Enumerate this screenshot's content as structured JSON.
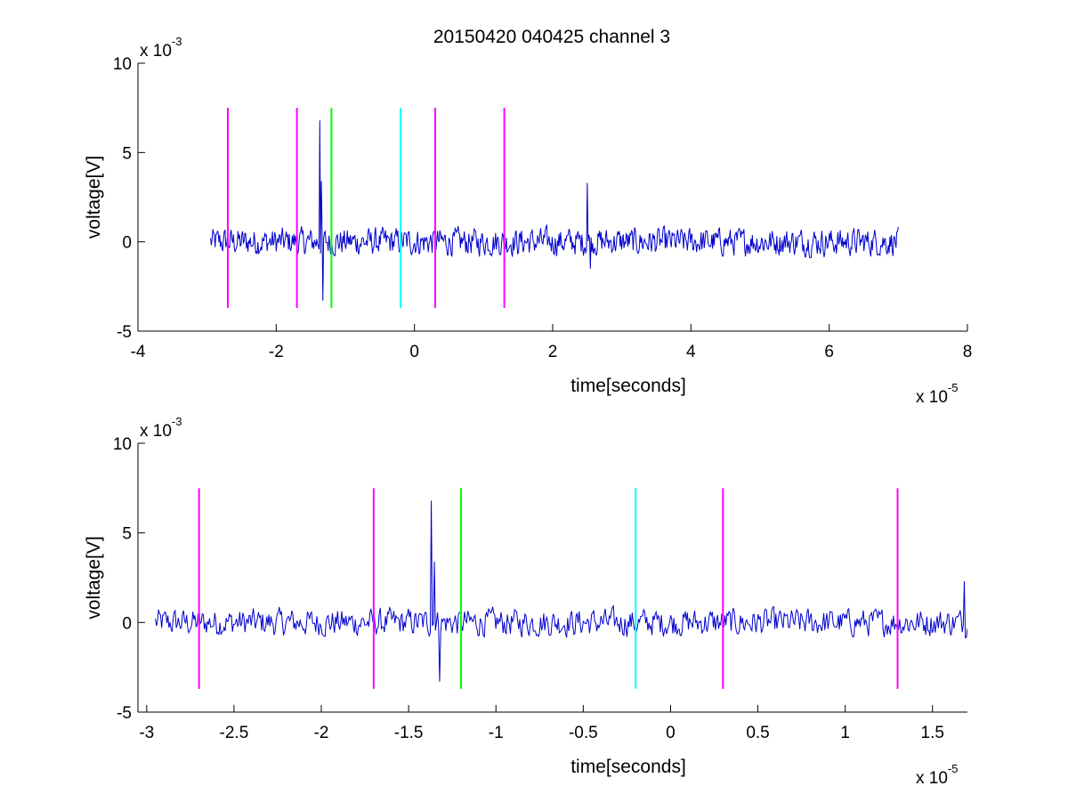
{
  "figure": {
    "title": "20150420 040425 channel 3"
  },
  "colors": {
    "signal": "#0000cc",
    "marker_magenta": "#ff00ff",
    "marker_green": "#00ff00",
    "marker_cyan": "#00ffff",
    "axis": "#000000",
    "background": "#ffffff"
  },
  "chart_data": [
    {
      "type": "line",
      "title": "20150420 040425 channel 3",
      "xlabel": "time[seconds]",
      "ylabel": "voltage[V]",
      "x_multiplier_base": "x 10",
      "x_multiplier_exp": "-5",
      "y_multiplier_base": "x 10",
      "y_multiplier_exp": "-3",
      "xlim": [
        -4,
        8
      ],
      "ylim": [
        -5,
        10
      ],
      "xticks": [
        -4,
        -2,
        0,
        2,
        4,
        6,
        8
      ],
      "xtick_labels": [
        "-4",
        "-2",
        "0",
        "2",
        "4",
        "6",
        "8"
      ],
      "yticks": [
        -5,
        0,
        5,
        10
      ],
      "ytick_labels": [
        "-5",
        "0",
        "5",
        "10"
      ],
      "grid": false,
      "signal": {
        "x_start": -2.95,
        "x_end": 7.0,
        "baseline": 0,
        "noise_amplitude": 0.8,
        "spikes": [
          {
            "x": -1.37,
            "y": 6.8
          },
          {
            "x": -1.35,
            "y": 3.4
          },
          {
            "x": -1.32,
            "y": -3.3
          },
          {
            "x": 2.5,
            "y": 3.3
          },
          {
            "x": 2.55,
            "y": -1.5
          }
        ]
      },
      "markers": [
        {
          "x": -2.7,
          "color": "magenta",
          "y_range": [
            -3.7,
            7.5
          ]
        },
        {
          "x": -1.7,
          "color": "magenta",
          "y_range": [
            -3.7,
            7.5
          ]
        },
        {
          "x": -1.2,
          "color": "green",
          "y_range": [
            -3.7,
            7.5
          ]
        },
        {
          "x": -0.2,
          "color": "cyan",
          "y_range": [
            -3.7,
            7.5
          ]
        },
        {
          "x": 0.3,
          "color": "magenta",
          "y_range": [
            -3.7,
            7.5
          ]
        },
        {
          "x": 1.3,
          "color": "magenta",
          "y_range": [
            -3.7,
            7.5
          ]
        }
      ]
    },
    {
      "type": "line",
      "title": "",
      "xlabel": "time[seconds]",
      "ylabel": "voltage[V]",
      "x_multiplier_base": "x 10",
      "x_multiplier_exp": "-5",
      "y_multiplier_base": "x 10",
      "y_multiplier_exp": "-3",
      "xlim": [
        -3.05,
        1.7
      ],
      "ylim": [
        -5,
        10
      ],
      "xticks": [
        -3,
        -2.5,
        -2,
        -1.5,
        -1,
        -0.5,
        0,
        0.5,
        1,
        1.5
      ],
      "xtick_labels": [
        "-3",
        "-2.5",
        "-2",
        "-1.5",
        "-1",
        "-0.5",
        "0",
        "0.5",
        "1",
        "1.5"
      ],
      "yticks": [
        -5,
        0,
        5,
        10
      ],
      "ytick_labels": [
        "-5",
        "0",
        "5",
        "10"
      ],
      "grid": false,
      "signal": {
        "x_start": -2.95,
        "x_end": 1.7,
        "baseline": 0,
        "noise_amplitude": 0.8,
        "spikes": [
          {
            "x": -1.37,
            "y": 6.8
          },
          {
            "x": -1.35,
            "y": 3.4
          },
          {
            "x": -1.32,
            "y": -3.3
          },
          {
            "x": 1.68,
            "y": 2.3
          }
        ]
      },
      "markers": [
        {
          "x": -2.7,
          "color": "magenta",
          "y_range": [
            -3.7,
            7.5
          ]
        },
        {
          "x": -1.7,
          "color": "magenta",
          "y_range": [
            -3.7,
            7.5
          ]
        },
        {
          "x": -1.2,
          "color": "green",
          "y_range": [
            -3.7,
            7.5
          ]
        },
        {
          "x": -0.2,
          "color": "cyan",
          "y_range": [
            -3.7,
            7.5
          ]
        },
        {
          "x": 0.3,
          "color": "magenta",
          "y_range": [
            -3.7,
            7.5
          ]
        },
        {
          "x": 1.3,
          "color": "magenta",
          "y_range": [
            -3.7,
            7.5
          ]
        }
      ]
    }
  ]
}
